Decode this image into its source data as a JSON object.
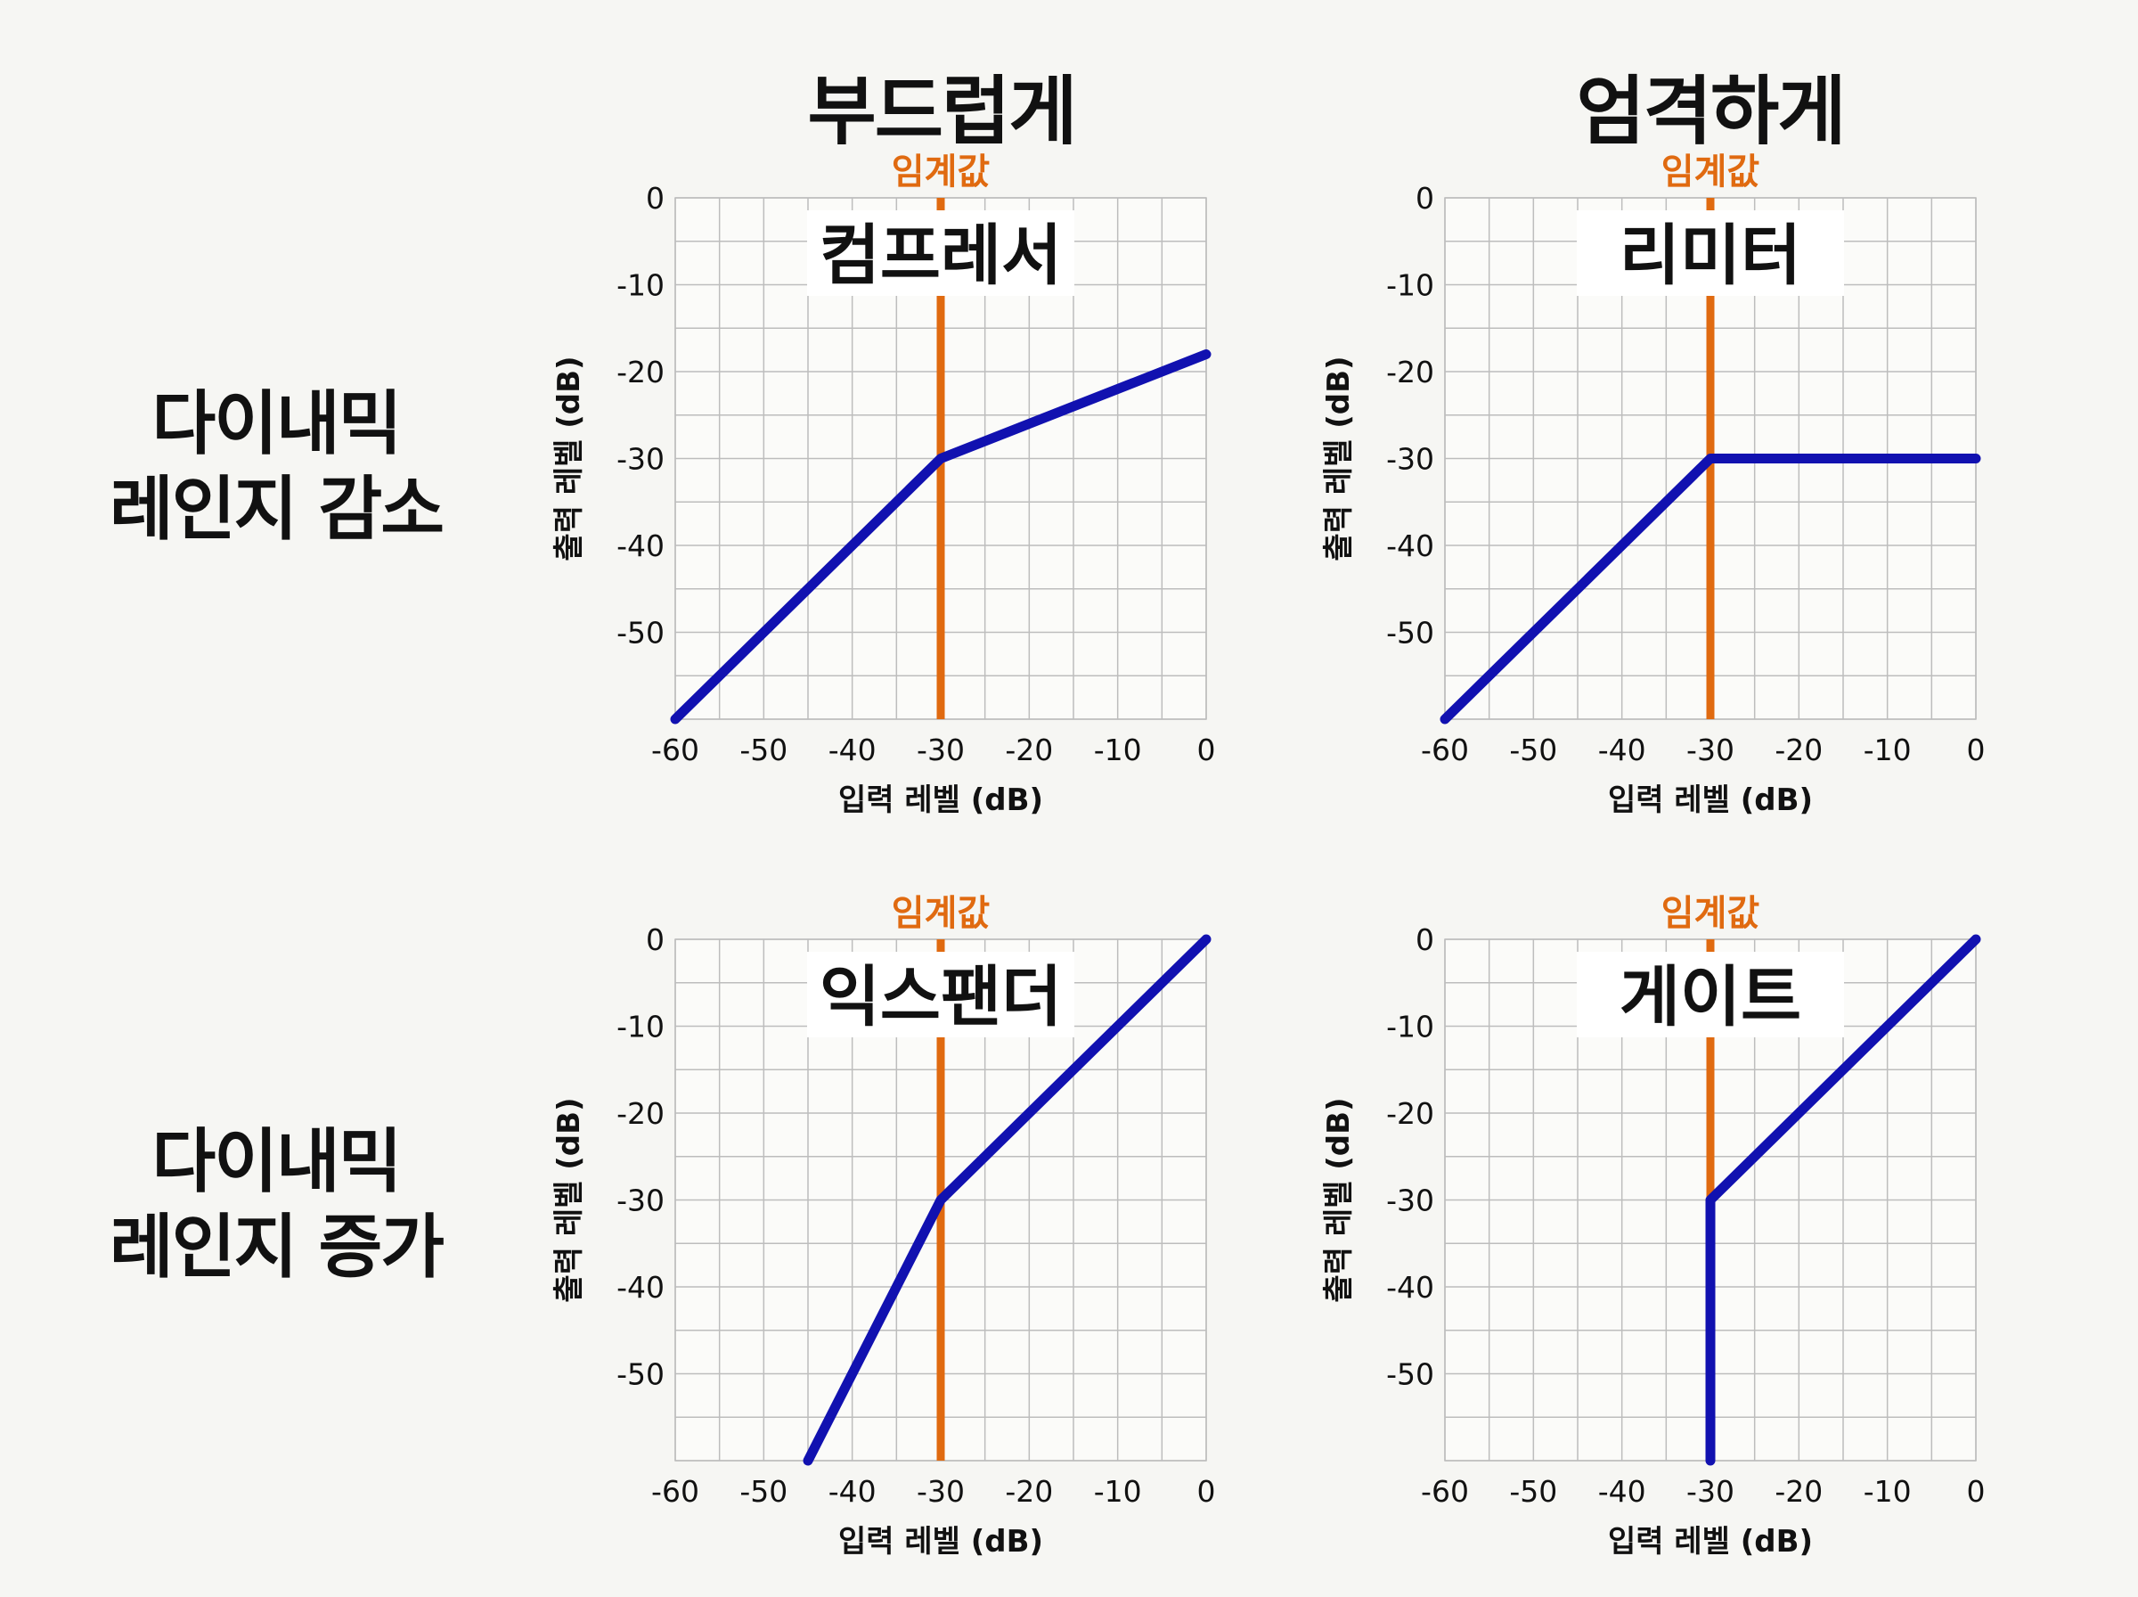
{
  "column_headers": [
    "부드럽게",
    "엄격하게"
  ],
  "row_headers": [
    [
      "다이내믹",
      "레인지 감소"
    ],
    [
      "다이내믹",
      "레인지 증가"
    ]
  ],
  "colors": {
    "curve": "#1111b0",
    "threshold": "#e06a10",
    "grid": "#bdbdbd"
  },
  "chart_data": [
    {
      "type": "line",
      "title": "컴프레서",
      "xlabel": "입력 레벨 (dB)",
      "ylabel": "출력 레벨 (dB)",
      "xlim": [
        -60,
        0
      ],
      "ylim": [
        -60,
        0
      ],
      "x_ticks": [
        -60,
        -50,
        -40,
        -30,
        -20,
        -10,
        0
      ],
      "y_ticks": [
        0,
        -10,
        -20,
        -30,
        -40,
        -50
      ],
      "threshold": {
        "label": "임계값",
        "x": -30
      },
      "series": [
        {
          "x": [
            -60,
            -30,
            0
          ],
          "y": [
            -60,
            -30,
            -18
          ]
        }
      ]
    },
    {
      "type": "line",
      "title": "리미터",
      "xlabel": "입력 레벨 (dB)",
      "ylabel": "출력 레벨 (dB)",
      "xlim": [
        -60,
        0
      ],
      "ylim": [
        -60,
        0
      ],
      "x_ticks": [
        -60,
        -50,
        -40,
        -30,
        -20,
        -10,
        0
      ],
      "y_ticks": [
        0,
        -10,
        -20,
        -30,
        -40,
        -50
      ],
      "threshold": {
        "label": "임계값",
        "x": -30
      },
      "series": [
        {
          "x": [
            -60,
            -30,
            0
          ],
          "y": [
            -60,
            -30,
            -30
          ]
        }
      ]
    },
    {
      "type": "line",
      "title": "익스팬더",
      "xlabel": "입력 레벨 (dB)",
      "ylabel": "출력 레벨 (dB)",
      "xlim": [
        -60,
        0
      ],
      "ylim": [
        -60,
        0
      ],
      "x_ticks": [
        -60,
        -50,
        -40,
        -30,
        -20,
        -10,
        0
      ],
      "y_ticks": [
        0,
        -10,
        -20,
        -30,
        -40,
        -50
      ],
      "threshold": {
        "label": "임계값",
        "x": -30
      },
      "series": [
        {
          "x": [
            -45,
            -30,
            0
          ],
          "y": [
            -60,
            -30,
            0
          ]
        }
      ]
    },
    {
      "type": "line",
      "title": "게이트",
      "xlabel": "입력 레벨 (dB)",
      "ylabel": "출력 레벨 (dB)",
      "xlim": [
        -60,
        0
      ],
      "ylim": [
        -60,
        0
      ],
      "x_ticks": [
        -60,
        -50,
        -40,
        -30,
        -20,
        -10,
        0
      ],
      "y_ticks": [
        0,
        -10,
        -20,
        -30,
        -40,
        -50
      ],
      "threshold": {
        "label": "임계값",
        "x": -30
      },
      "series": [
        {
          "x": [
            -30,
            -30,
            0
          ],
          "y": [
            -60,
            -30,
            0
          ]
        }
      ]
    }
  ]
}
